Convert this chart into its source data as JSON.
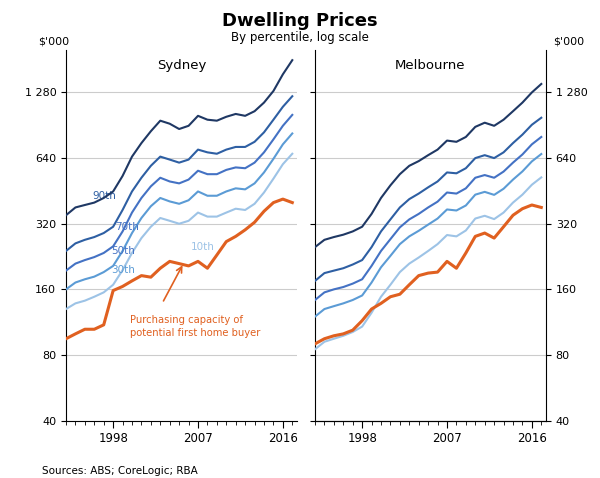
{
  "title": "Dwelling Prices",
  "subtitle": "By percentile, log scale",
  "ylabel_left": "$'000",
  "ylabel_right": "$'000",
  "source": "Sources: ABS; CoreLogic; RBA",
  "panels": [
    "Sydney",
    "Melbourne"
  ],
  "years": [
    1993,
    1994,
    1995,
    1996,
    1997,
    1998,
    1999,
    2000,
    2001,
    2002,
    2003,
    2004,
    2005,
    2006,
    2007,
    2008,
    2009,
    2010,
    2011,
    2012,
    2013,
    2014,
    2015,
    2016,
    2017
  ],
  "sydney": {
    "p90": [
      350,
      380,
      390,
      400,
      420,
      450,
      530,
      650,
      750,
      850,
      950,
      920,
      870,
      900,
      1000,
      960,
      950,
      990,
      1020,
      1000,
      1050,
      1150,
      1300,
      1550,
      1800
    ],
    "p70": [
      240,
      260,
      270,
      278,
      290,
      310,
      370,
      450,
      520,
      590,
      650,
      630,
      610,
      630,
      700,
      680,
      670,
      700,
      720,
      720,
      760,
      840,
      960,
      1100,
      1230
    ],
    "p50": [
      195,
      210,
      218,
      225,
      235,
      252,
      295,
      360,
      420,
      475,
      520,
      500,
      490,
      510,
      560,
      540,
      540,
      565,
      580,
      575,
      610,
      680,
      780,
      900,
      1010
    ],
    "p30": [
      160,
      172,
      178,
      183,
      192,
      205,
      240,
      290,
      340,
      385,
      420,
      405,
      395,
      410,
      450,
      430,
      430,
      450,
      465,
      460,
      490,
      550,
      635,
      740,
      830
    ],
    "p10": [
      130,
      138,
      142,
      148,
      155,
      168,
      196,
      235,
      275,
      310,
      340,
      330,
      320,
      330,
      360,
      345,
      345,
      360,
      375,
      370,
      395,
      445,
      515,
      600,
      670
    ],
    "capacity": [
      95,
      100,
      105,
      105,
      110,
      158,
      165,
      175,
      185,
      182,
      200,
      215,
      210,
      205,
      215,
      200,
      230,
      265,
      280,
      300,
      325,
      365,
      400,
      415,
      400
    ]
  },
  "melbourne": {
    "p90": [
      250,
      270,
      278,
      285,
      295,
      310,
      355,
      420,
      480,
      540,
      590,
      620,
      660,
      700,
      770,
      760,
      800,
      890,
      930,
      900,
      960,
      1050,
      1150,
      1280,
      1400
    ],
    "p70": [
      175,
      190,
      195,
      200,
      208,
      218,
      250,
      295,
      335,
      380,
      415,
      440,
      470,
      500,
      550,
      545,
      575,
      640,
      660,
      640,
      680,
      750,
      820,
      910,
      980
    ],
    "p50": [
      143,
      155,
      160,
      164,
      170,
      178,
      205,
      240,
      272,
      308,
      335,
      355,
      380,
      404,
      445,
      440,
      465,
      520,
      535,
      520,
      555,
      610,
      665,
      740,
      800
    ],
    "p30": [
      120,
      130,
      134,
      138,
      143,
      150,
      172,
      202,
      228,
      258,
      280,
      297,
      317,
      338,
      372,
      368,
      388,
      435,
      448,
      434,
      463,
      510,
      556,
      618,
      668
    ],
    "p10": [
      85,
      92,
      95,
      98,
      102,
      108,
      125,
      148,
      168,
      192,
      210,
      224,
      240,
      258,
      284,
      280,
      298,
      338,
      348,
      336,
      360,
      400,
      435,
      483,
      522
    ],
    "capacity": [
      90,
      95,
      98,
      100,
      104,
      115,
      130,
      138,
      148,
      152,
      168,
      185,
      190,
      192,
      215,
      200,
      235,
      280,
      290,
      275,
      310,
      350,
      375,
      390,
      380
    ]
  },
  "color_p90": "#1f3864",
  "color_p70": "#2e5fa3",
  "color_p50": "#4472c4",
  "color_p30": "#5b9bd5",
  "color_p10": "#9dc3e6",
  "color_capacity": "#e06020",
  "yticks": [
    40,
    80,
    160,
    320,
    640,
    1280
  ],
  "ylim": [
    40,
    2000
  ],
  "xlim": [
    1993,
    2017.5
  ],
  "xticks": [
    1998,
    2007,
    2016
  ],
  "annotation_text": "Purchasing capacity of\npotential first home buyer",
  "annotation_color": "#e06020",
  "grid_color": "#cccccc",
  "bg_color": "#ffffff"
}
